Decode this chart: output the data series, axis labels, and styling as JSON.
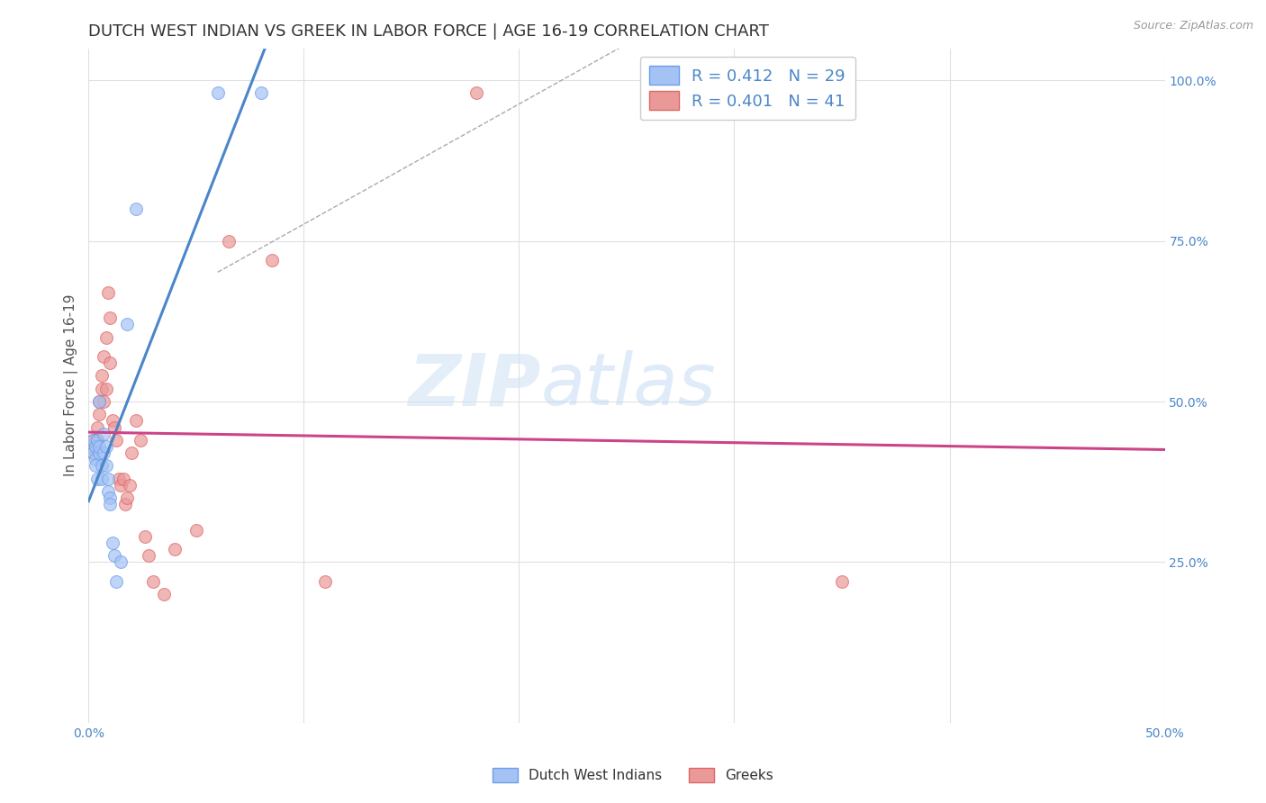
{
  "title": "DUTCH WEST INDIAN VS GREEK IN LABOR FORCE | AGE 16-19 CORRELATION CHART",
  "source": "Source: ZipAtlas.com",
  "ylabel_left": "In Labor Force | Age 16-19",
  "xlim": [
    0.0,
    0.5
  ],
  "ylim": [
    0.0,
    1.05
  ],
  "background_color": "#ffffff",
  "grid_color": "#e0e0e0",
  "watermark_zip": "ZIP",
  "watermark_atlas": "atlas",
  "legend_r1": "R = 0.412",
  "legend_n1": "N = 29",
  "legend_r2": "R = 0.401",
  "legend_n2": "N = 41",
  "blue_fill": "#a4c2f4",
  "blue_edge": "#6d9eeb",
  "blue_line": "#4a86c8",
  "pink_fill": "#ea9999",
  "pink_edge": "#e06666",
  "pink_line": "#cc4488",
  "dutch_west_indian_x": [
    0.001,
    0.002,
    0.002,
    0.003,
    0.003,
    0.003,
    0.004,
    0.004,
    0.005,
    0.005,
    0.005,
    0.006,
    0.006,
    0.007,
    0.007,
    0.008,
    0.008,
    0.009,
    0.009,
    0.01,
    0.01,
    0.011,
    0.012,
    0.013,
    0.015,
    0.018,
    0.022,
    0.06,
    0.08
  ],
  "dutch_west_indian_y": [
    0.43,
    0.44,
    0.42,
    0.43,
    0.41,
    0.4,
    0.44,
    0.38,
    0.5,
    0.42,
    0.43,
    0.38,
    0.4,
    0.45,
    0.42,
    0.43,
    0.4,
    0.36,
    0.38,
    0.35,
    0.34,
    0.28,
    0.26,
    0.22,
    0.25,
    0.62,
    0.8,
    0.98,
    0.98
  ],
  "greeks_x": [
    0.001,
    0.002,
    0.002,
    0.003,
    0.003,
    0.004,
    0.004,
    0.005,
    0.005,
    0.006,
    0.006,
    0.007,
    0.007,
    0.008,
    0.008,
    0.009,
    0.01,
    0.01,
    0.011,
    0.012,
    0.013,
    0.014,
    0.015,
    0.016,
    0.017,
    0.018,
    0.019,
    0.02,
    0.022,
    0.024,
    0.026,
    0.028,
    0.03,
    0.035,
    0.04,
    0.05,
    0.065,
    0.085,
    0.11,
    0.18,
    0.35
  ],
  "greeks_y": [
    0.43,
    0.44,
    0.42,
    0.44,
    0.43,
    0.46,
    0.44,
    0.5,
    0.48,
    0.52,
    0.54,
    0.5,
    0.57,
    0.52,
    0.6,
    0.67,
    0.63,
    0.56,
    0.47,
    0.46,
    0.44,
    0.38,
    0.37,
    0.38,
    0.34,
    0.35,
    0.37,
    0.42,
    0.47,
    0.44,
    0.29,
    0.26,
    0.22,
    0.2,
    0.27,
    0.3,
    0.75,
    0.72,
    0.22,
    0.98,
    0.22
  ],
  "title_fontsize": 13,
  "axis_label_fontsize": 11,
  "tick_fontsize": 10,
  "legend_fontsize": 13
}
